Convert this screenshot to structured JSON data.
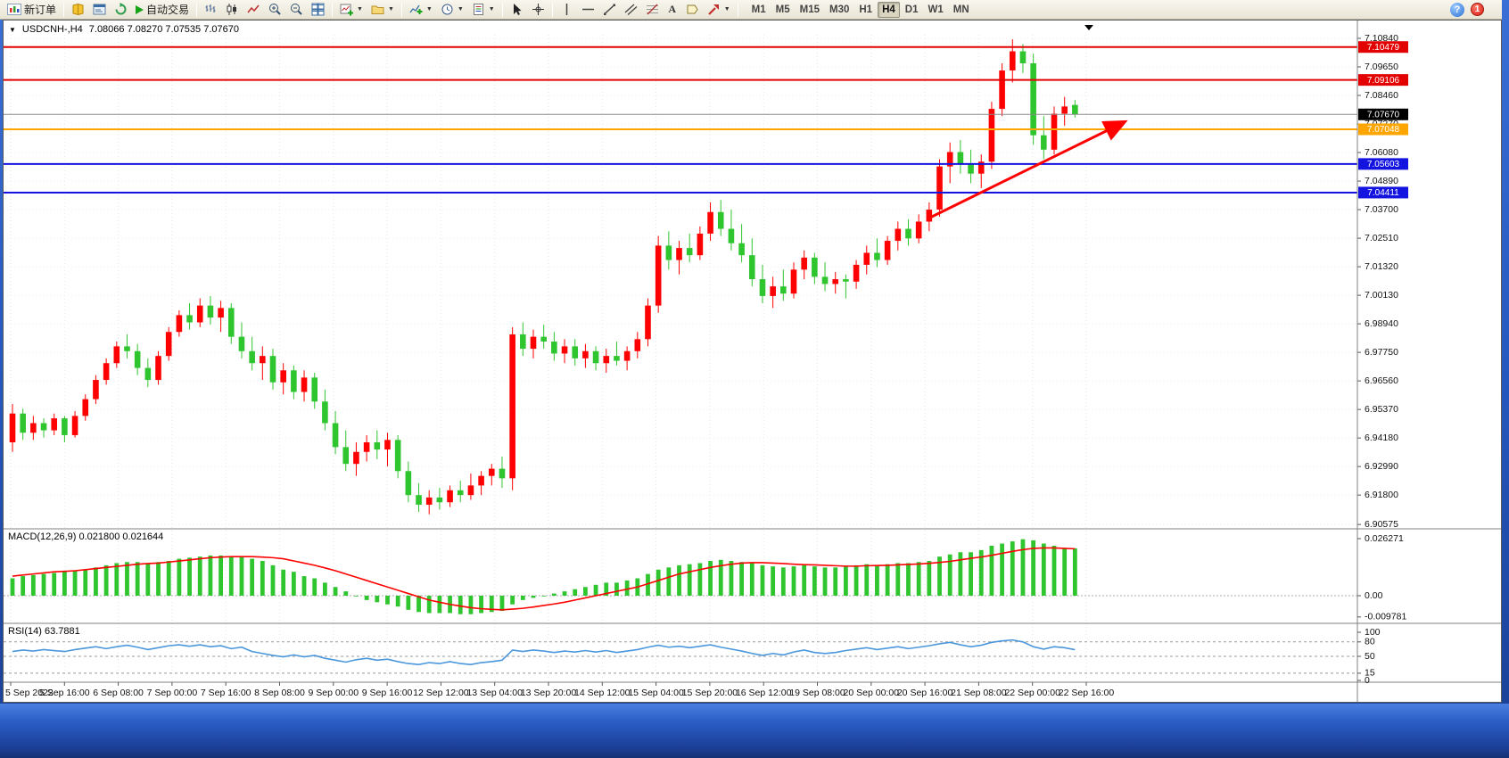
{
  "toolbar": {
    "new_order_label": "新订单",
    "autotrading_label": "自动交易",
    "timeframes": [
      "M1",
      "M5",
      "M15",
      "M30",
      "H1",
      "H4",
      "D1",
      "W1",
      "MN"
    ],
    "active_timeframe": "H4",
    "notification_count": "1",
    "help_glyph": "?",
    "text_tool_glyph": "A",
    "icons": [
      "new-order-icon",
      "metaeditor-icon",
      "terminal-icon",
      "strategy-tester-icon",
      "autotrading-play-icon",
      "bar-chart-icon",
      "candlestick-chart-icon",
      "line-chart-icon",
      "zoom-in-icon",
      "zoom-out-icon",
      "tile-windows-icon",
      "new-chart-icon",
      "profiles-icon",
      "indicators-icon",
      "periods-icon",
      "templates-icon",
      "cursor-icon",
      "crosshair-icon",
      "vertical-line-icon",
      "horizontal-line-icon",
      "trendline-icon",
      "channel-icon",
      "fibonacci-icon",
      "text-icon",
      "label-icon",
      "shapes-icon",
      "help-icon",
      "notification-icon"
    ]
  },
  "chart": {
    "collapse_arrow": "▼",
    "title": "USDCNH-,H4",
    "ohlc": "7.08066 7.08270 7.07535 7.07670",
    "macd_label": "MACD(12,26,9) 0.021800 0.021644",
    "rsi_label": "RSI(14) 63.7881"
  },
  "ui_colors": {
    "toolbar_bg": "#ECE9D8",
    "window_frame": "#2558BE",
    "chart_bg": "#FFFFFF"
  },
  "chart_data": {
    "type": "candlestick",
    "symbol": "USDCNH-",
    "timeframe": "H4",
    "current_bar": {
      "open": 7.08066,
      "high": 7.0827,
      "low": 7.07535,
      "close": 7.0767
    },
    "colors": {
      "bull": "#FF0000",
      "bear": "#2FC52F"
    },
    "price_axis": {
      "labels": [
        "7.10840",
        "7.09650",
        "7.08460",
        "7.07270",
        "7.06080",
        "7.04890",
        "7.03700",
        "7.02510",
        "7.01320",
        "7.00130",
        "6.98940",
        "6.97750",
        "6.96560",
        "6.95370",
        "6.94180",
        "6.92990",
        "6.91800",
        "6.90575"
      ]
    },
    "current_price": {
      "value": 7.0767,
      "label": "7.07670",
      "box_color": "#000000",
      "line_color": "#8A8A8A"
    },
    "levels": [
      {
        "price": 7.10479,
        "label": "7.10479",
        "color": "#E30000"
      },
      {
        "price": 7.09106,
        "label": "7.09106",
        "color": "#E30000"
      },
      {
        "price": 7.07048,
        "label": "7.07048",
        "color": "#FFA500"
      },
      {
        "price": 7.05603,
        "label": "7.05603",
        "color": "#1414E0"
      },
      {
        "price": 7.04411,
        "label": "7.04411",
        "color": "#1414E0"
      }
    ],
    "trend_arrow": {
      "color": "#FF0000",
      "from": {
        "bar": 88,
        "price": 7.0335
      },
      "to": {
        "bar": 106.5,
        "price": 7.073
      }
    },
    "time_labels": [
      "5 Sep 2022",
      "5 Sep 16:00",
      "6 Sep 08:00",
      "7 Sep 00:00",
      "7 Sep 16:00",
      "8 Sep 08:00",
      "9 Sep 00:00",
      "9 Sep 16:00",
      "12 Sep 12:00",
      "13 Sep 04:00",
      "13 Sep 20:00",
      "14 Sep 12:00",
      "15 Sep 04:00",
      "15 Sep 20:00",
      "16 Sep 12:00",
      "19 Sep 08:00",
      "20 Sep 00:00",
      "20 Sep 16:00",
      "21 Sep 08:00",
      "22 Sep 00:00",
      "22 Sep 16:00"
    ],
    "candles": [
      [
        6.94,
        6.956,
        6.936,
        6.952
      ],
      [
        6.952,
        6.954,
        6.941,
        6.944
      ],
      [
        6.944,
        6.951,
        6.941,
        6.948
      ],
      [
        6.948,
        6.95,
        6.942,
        6.945
      ],
      [
        6.945,
        6.952,
        6.943,
        6.95
      ],
      [
        6.95,
        6.951,
        6.94,
        6.943
      ],
      [
        6.943,
        6.953,
        6.942,
        6.951
      ],
      [
        6.951,
        6.96,
        6.949,
        6.958
      ],
      [
        6.958,
        6.968,
        6.956,
        6.966
      ],
      [
        6.966,
        6.975,
        6.964,
        6.973
      ],
      [
        6.973,
        6.982,
        6.971,
        6.98
      ],
      [
        6.98,
        6.985,
        6.975,
        6.978
      ],
      [
        6.978,
        6.981,
        6.968,
        6.971
      ],
      [
        6.971,
        6.975,
        6.963,
        6.966
      ],
      [
        6.966,
        6.978,
        6.964,
        6.976
      ],
      [
        6.976,
        6.988,
        6.974,
        6.986
      ],
      [
        6.986,
        6.995,
        6.984,
        6.993
      ],
      [
        6.993,
        6.998,
        6.987,
        6.99
      ],
      [
        6.99,
        7.0,
        6.988,
        6.997
      ],
      [
        6.997,
        7.001,
        6.989,
        6.992
      ],
      [
        6.992,
        6.999,
        6.986,
        6.996
      ],
      [
        6.996,
        6.998,
        6.981,
        6.984
      ],
      [
        6.984,
        6.99,
        6.975,
        6.978
      ],
      [
        6.978,
        6.984,
        6.97,
        6.973
      ],
      [
        6.973,
        6.98,
        6.966,
        6.976
      ],
      [
        6.976,
        6.979,
        6.962,
        6.965
      ],
      [
        6.965,
        6.973,
        6.96,
        6.97
      ],
      [
        6.97,
        6.972,
        6.958,
        6.961
      ],
      [
        6.961,
        6.97,
        6.957,
        6.967
      ],
      [
        6.967,
        6.969,
        6.954,
        6.957
      ],
      [
        6.957,
        6.962,
        6.945,
        6.948
      ],
      [
        6.948,
        6.953,
        6.935,
        6.938
      ],
      [
        6.938,
        6.945,
        6.928,
        6.931
      ],
      [
        6.931,
        6.94,
        6.926,
        6.936
      ],
      [
        6.936,
        6.943,
        6.932,
        6.94
      ],
      [
        6.94,
        6.945,
        6.933,
        6.937
      ],
      [
        6.937,
        6.944,
        6.93,
        6.941
      ],
      [
        6.941,
        6.943,
        6.925,
        6.928
      ],
      [
        6.928,
        6.932,
        6.915,
        6.918
      ],
      [
        6.918,
        6.923,
        6.911,
        6.914
      ],
      [
        6.914,
        6.92,
        6.91,
        6.917
      ],
      [
        6.917,
        6.921,
        6.912,
        6.915
      ],
      [
        6.915,
        6.922,
        6.913,
        6.92
      ],
      [
        6.92,
        6.924,
        6.915,
        6.918
      ],
      [
        6.918,
        6.927,
        6.916,
        6.922
      ],
      [
        6.922,
        6.928,
        6.918,
        6.926
      ],
      [
        6.926,
        6.931,
        6.922,
        6.929
      ],
      [
        6.929,
        6.934,
        6.921,
        6.925
      ],
      [
        6.925,
        6.988,
        6.92,
        6.985
      ],
      [
        6.985,
        6.99,
        6.976,
        6.979
      ],
      [
        6.979,
        6.987,
        6.975,
        6.984
      ],
      [
        6.984,
        6.989,
        6.979,
        6.982
      ],
      [
        6.982,
        6.986,
        6.974,
        6.977
      ],
      [
        6.977,
        6.983,
        6.973,
        6.98
      ],
      [
        6.98,
        6.983,
        6.972,
        6.975
      ],
      [
        6.975,
        6.981,
        6.971,
        6.978
      ],
      [
        6.978,
        6.98,
        6.97,
        6.973
      ],
      [
        6.973,
        6.979,
        6.969,
        6.976
      ],
      [
        6.976,
        6.982,
        6.972,
        6.974
      ],
      [
        6.974,
        6.98,
        6.97,
        6.978
      ],
      [
        6.978,
        6.986,
        6.975,
        6.983
      ],
      [
        6.983,
        7.0,
        6.98,
        6.997
      ],
      [
        6.997,
        7.026,
        6.994,
        7.022
      ],
      [
        7.022,
        7.028,
        7.012,
        7.016
      ],
      [
        7.016,
        7.024,
        7.01,
        7.021
      ],
      [
        7.021,
        7.027,
        7.015,
        7.018
      ],
      [
        7.018,
        7.03,
        7.016,
        7.027
      ],
      [
        7.027,
        7.04,
        7.024,
        7.036
      ],
      [
        7.036,
        7.041,
        7.026,
        7.029
      ],
      [
        7.029,
        7.037,
        7.02,
        7.023
      ],
      [
        7.023,
        7.031,
        7.015,
        7.018
      ],
      [
        7.018,
        7.025,
        7.005,
        7.008
      ],
      [
        7.008,
        7.014,
        6.998,
        7.001
      ],
      [
        7.001,
        7.009,
        6.996,
        7.005
      ],
      [
        7.005,
        7.012,
        6.999,
        7.002
      ],
      [
        7.002,
        7.015,
        7.0,
        7.012
      ],
      [
        7.012,
        7.02,
        7.008,
        7.017
      ],
      [
        7.017,
        7.019,
        7.006,
        7.009
      ],
      [
        7.009,
        7.015,
        7.003,
        7.006
      ],
      [
        7.006,
        7.011,
        7.002,
        7.008
      ],
      [
        7.008,
        7.01,
        7.0,
        7.007
      ],
      [
        7.007,
        7.016,
        7.004,
        7.014
      ],
      [
        7.014,
        7.022,
        7.01,
        7.019
      ],
      [
        7.019,
        7.025,
        7.013,
        7.016
      ],
      [
        7.016,
        7.026,
        7.014,
        7.024
      ],
      [
        7.024,
        7.032,
        7.02,
        7.029
      ],
      [
        7.029,
        7.033,
        7.022,
        7.025
      ],
      [
        7.025,
        7.035,
        7.023,
        7.032
      ],
      [
        7.032,
        7.04,
        7.028,
        7.037
      ],
      [
        7.037,
        7.058,
        7.034,
        7.055
      ],
      [
        7.055,
        7.065,
        7.048,
        7.061
      ],
      [
        7.061,
        7.066,
        7.052,
        7.056
      ],
      [
        7.056,
        7.062,
        7.048,
        7.052
      ],
      [
        7.052,
        7.06,
        7.046,
        7.057
      ],
      [
        7.057,
        7.082,
        7.054,
        7.079
      ],
      [
        7.079,
        7.098,
        7.076,
        7.095
      ],
      [
        7.095,
        7.108,
        7.09,
        7.103
      ],
      [
        7.103,
        7.106,
        7.094,
        7.098
      ],
      [
        7.098,
        7.102,
        7.064,
        7.068
      ],
      [
        7.068,
        7.076,
        7.058,
        7.062
      ],
      [
        7.062,
        7.08,
        7.06,
        7.077
      ],
      [
        7.077,
        7.084,
        7.072,
        7.08
      ],
      [
        7.08066,
        7.0827,
        7.07535,
        7.0767
      ]
    ],
    "macd": {
      "label": "MACD(12,26,9)",
      "main_value": 0.0218,
      "signal_value": 0.021644,
      "hist_color": "#2FC52F",
      "signal_color": "#FF0000",
      "scale": [
        {
          "text": "0.026271",
          "value": 0.026271
        },
        {
          "text": "0.00",
          "value": 0
        },
        {
          "text": "-0.009781",
          "value": -0.009781
        }
      ],
      "histogram": [
        0.008,
        0.009,
        0.0095,
        0.01,
        0.0105,
        0.011,
        0.0115,
        0.012,
        0.013,
        0.014,
        0.015,
        0.0155,
        0.0155,
        0.015,
        0.0155,
        0.016,
        0.017,
        0.0175,
        0.018,
        0.0185,
        0.0185,
        0.018,
        0.018,
        0.017,
        0.016,
        0.014,
        0.012,
        0.011,
        0.009,
        0.008,
        0.006,
        0.004,
        0.002,
        0.0,
        -0.002,
        -0.003,
        -0.004,
        -0.005,
        -0.0065,
        -0.0075,
        -0.008,
        -0.008,
        -0.008,
        -0.0085,
        -0.0085,
        -0.008,
        -0.0075,
        -0.007,
        -0.004,
        -0.002,
        -0.001,
        0.0,
        0.001,
        0.002,
        0.003,
        0.004,
        0.005,
        0.006,
        0.006,
        0.007,
        0.008,
        0.01,
        0.012,
        0.013,
        0.014,
        0.0145,
        0.015,
        0.016,
        0.0165,
        0.016,
        0.0155,
        0.015,
        0.014,
        0.0135,
        0.013,
        0.0135,
        0.014,
        0.0135,
        0.013,
        0.013,
        0.0135,
        0.014,
        0.0145,
        0.014,
        0.0145,
        0.015,
        0.015,
        0.0155,
        0.016,
        0.018,
        0.019,
        0.02,
        0.02,
        0.021,
        0.023,
        0.024,
        0.025,
        0.026,
        0.0255,
        0.024,
        0.023,
        0.022,
        0.0218
      ],
      "signal": [
        0.009,
        0.0095,
        0.01,
        0.0105,
        0.011,
        0.0112,
        0.0115,
        0.012,
        0.0125,
        0.013,
        0.0135,
        0.014,
        0.0145,
        0.0148,
        0.015,
        0.0155,
        0.016,
        0.0165,
        0.017,
        0.0175,
        0.0178,
        0.018,
        0.018,
        0.018,
        0.0178,
        0.0175,
        0.017,
        0.016,
        0.015,
        0.014,
        0.0128,
        0.0115,
        0.01,
        0.0085,
        0.007,
        0.0055,
        0.004,
        0.0025,
        0.001,
        -0.0005,
        -0.002,
        -0.003,
        -0.004,
        -0.0048,
        -0.0055,
        -0.006,
        -0.0063,
        -0.0065,
        -0.0062,
        -0.0058,
        -0.0052,
        -0.0045,
        -0.0038,
        -0.003,
        -0.002,
        -0.001,
        0.0,
        0.001,
        0.002,
        0.003,
        0.004,
        0.0055,
        0.007,
        0.0085,
        0.01,
        0.011,
        0.012,
        0.013,
        0.0138,
        0.0145,
        0.015,
        0.0152,
        0.0152,
        0.015,
        0.0148,
        0.0145,
        0.0143,
        0.0142,
        0.014,
        0.0138,
        0.0136,
        0.0136,
        0.0138,
        0.0139,
        0.014,
        0.0142,
        0.0144,
        0.0146,
        0.0149,
        0.0153,
        0.0158,
        0.0165,
        0.0172,
        0.0178,
        0.0186,
        0.0195,
        0.0204,
        0.0212,
        0.0218,
        0.022,
        0.022,
        0.0218,
        0.0216
      ]
    },
    "rsi": {
      "label": "RSI(14)",
      "value": 63.7881,
      "color": "#4A97DC",
      "scale": [
        {
          "text": "100",
          "value": 100
        },
        {
          "text": "80",
          "value": 80
        },
        {
          "text": "50",
          "value": 50
        },
        {
          "text": "15",
          "value": 15
        },
        {
          "text": "0",
          "value": 0
        }
      ],
      "level_lines": [
        80,
        50,
        15
      ],
      "values": [
        60,
        63,
        61,
        64,
        62,
        60,
        64,
        67,
        70,
        66,
        70,
        73,
        69,
        64,
        68,
        72,
        74,
        71,
        74,
        70,
        72,
        66,
        69,
        60,
        56,
        52,
        49,
        53,
        49,
        52,
        46,
        42,
        38,
        43,
        46,
        42,
        44,
        39,
        35,
        33,
        37,
        35,
        39,
        35,
        33,
        37,
        39,
        42,
        63,
        60,
        63,
        61,
        58,
        61,
        59,
        62,
        59,
        62,
        58,
        61,
        64,
        69,
        73,
        69,
        71,
        68,
        71,
        74,
        69,
        65,
        61,
        56,
        52,
        56,
        53,
        59,
        63,
        58,
        56,
        58,
        62,
        65,
        68,
        64,
        67,
        70,
        66,
        69,
        72,
        76,
        79,
        74,
        70,
        73,
        79,
        82,
        84,
        80,
        70,
        65,
        70,
        68,
        63.8
      ]
    }
  }
}
